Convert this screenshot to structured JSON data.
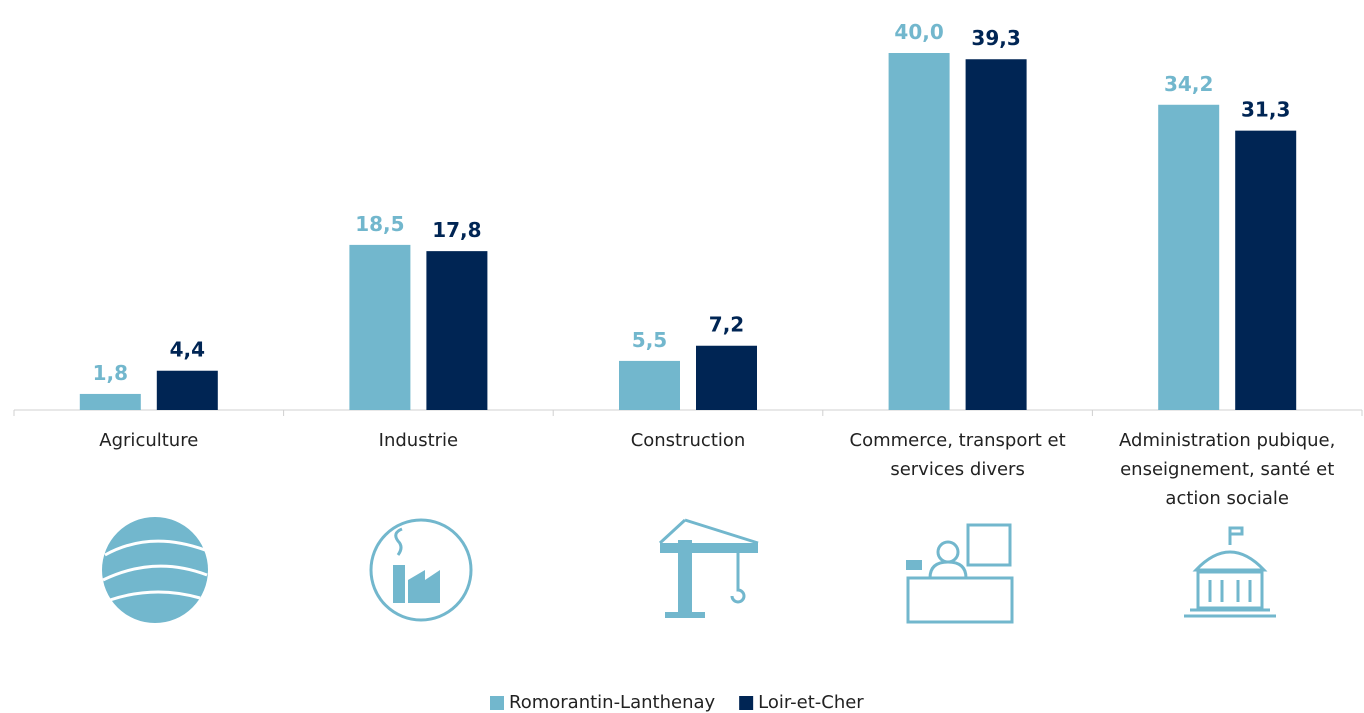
{
  "chart_data": {
    "type": "bar",
    "categories": [
      "Agriculture",
      "Industrie",
      "Construction",
      "Commerce, transport et services divers",
      "Administration pubique, enseignement, santé et action sociale"
    ],
    "series": [
      {
        "name": "Romorantin-Lanthenay",
        "color": "#72b7cd",
        "values": [
          1.8,
          18.5,
          5.5,
          40.0,
          34.2
        ],
        "value_labels": [
          "1,8",
          "18,5",
          "5,5",
          "40,0",
          "34,2"
        ]
      },
      {
        "name": "Loir-et-Cher",
        "color": "#002554",
        "values": [
          4.4,
          17.8,
          7.2,
          39.3,
          31.3
        ],
        "value_labels": [
          "4,4",
          "17,8",
          "7,2",
          "39,3",
          "31,3"
        ]
      }
    ],
    "ylim": [
      0,
      40
    ],
    "legend": "bottom"
  }
}
